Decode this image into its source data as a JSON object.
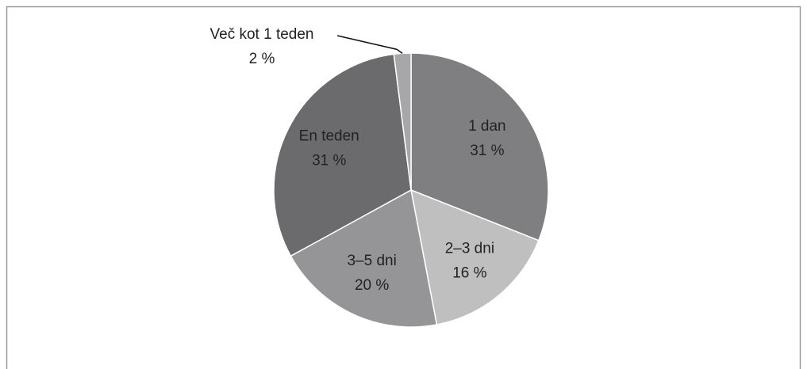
{
  "chart_data": {
    "type": "pie",
    "categories": [
      "1 dan",
      "2–3 dni",
      "3–5 dni",
      "En teden",
      "Več kot 1 teden"
    ],
    "values": [
      31,
      16,
      20,
      31,
      2
    ],
    "value_labels": [
      "31 %",
      "16 %",
      "20 %",
      "31 %",
      "2 %"
    ],
    "colors": [
      "#7f7f81",
      "#bfbfc0",
      "#959597",
      "#6b6b6d",
      "#a7a7a9"
    ]
  }
}
